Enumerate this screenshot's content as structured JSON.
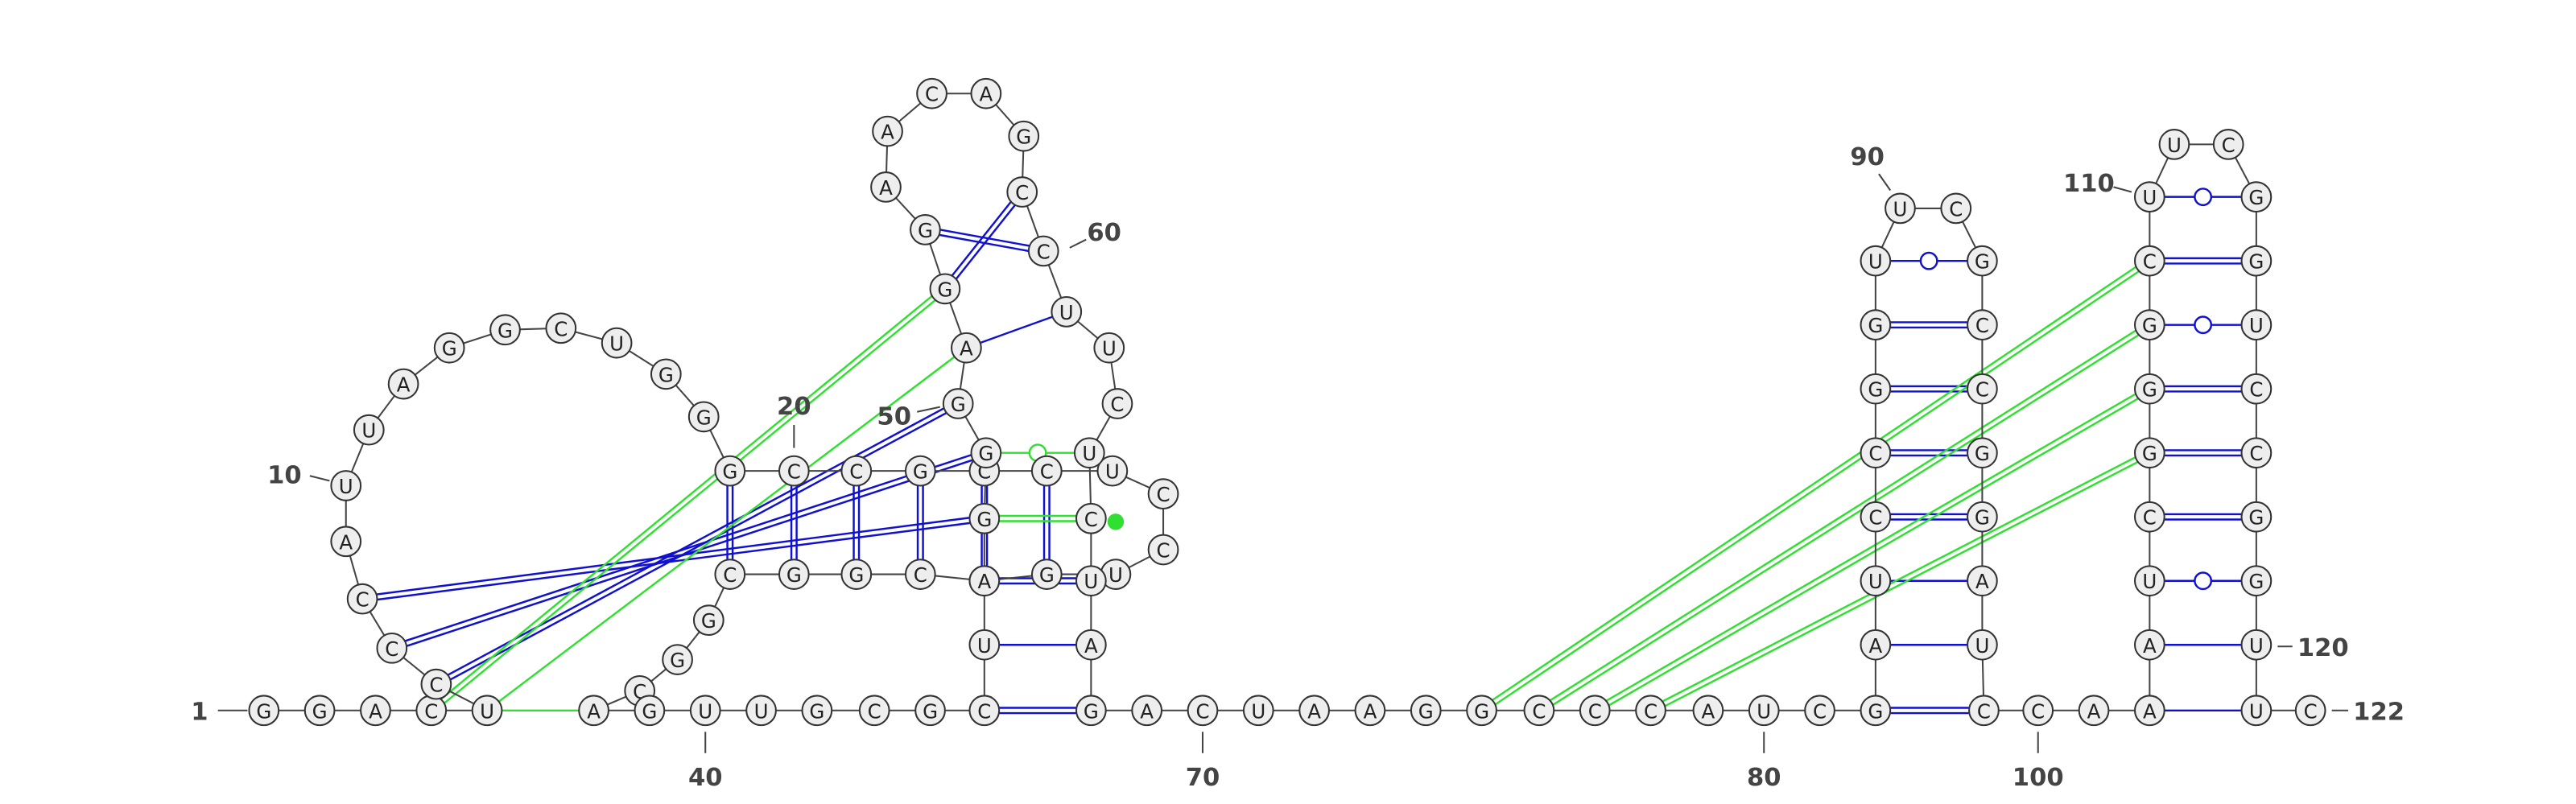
{
  "sequence": [
    "G",
    "G",
    "A",
    "C",
    "U",
    "C",
    "C",
    "C",
    "A",
    "U",
    "U",
    "A",
    "G",
    "G",
    "C",
    "U",
    "G",
    "G",
    "G",
    "C",
    "C",
    "G",
    "C",
    "C",
    "U",
    "C",
    "C",
    "U",
    "G",
    "A",
    "C",
    "G",
    "G",
    "C",
    "G",
    "G",
    "C",
    "A",
    "G",
    "U",
    "U",
    "G",
    "C",
    "G",
    "C",
    "U",
    "A",
    "G",
    "G",
    "G",
    "A",
    "G",
    "G",
    "A",
    "A",
    "C",
    "A",
    "G",
    "C",
    "C",
    "U",
    "U",
    "C",
    "U",
    "C",
    "U",
    "A",
    "G",
    "A",
    "C",
    "U",
    "A",
    "A",
    "G",
    "G",
    "C",
    "C",
    "C",
    "A",
    "U",
    "C",
    "G",
    "A",
    "U",
    "C",
    "C",
    "G",
    "G",
    "U",
    "U",
    "C",
    "G",
    "C",
    "C",
    "G",
    "G",
    "A",
    "U",
    "C",
    "C",
    "A",
    "A",
    "A",
    "U",
    "C",
    "G",
    "G",
    "G",
    "C",
    "U",
    "U",
    "C",
    "G",
    "G",
    "U",
    "C",
    "C",
    "G",
    "G",
    "U",
    "U",
    "C"
  ],
  "numbering": [
    "1",
    "10",
    "20",
    "40",
    "50",
    "60",
    "70",
    "80",
    "90",
    "100",
    "110",
    "120",
    "122"
  ]
}
